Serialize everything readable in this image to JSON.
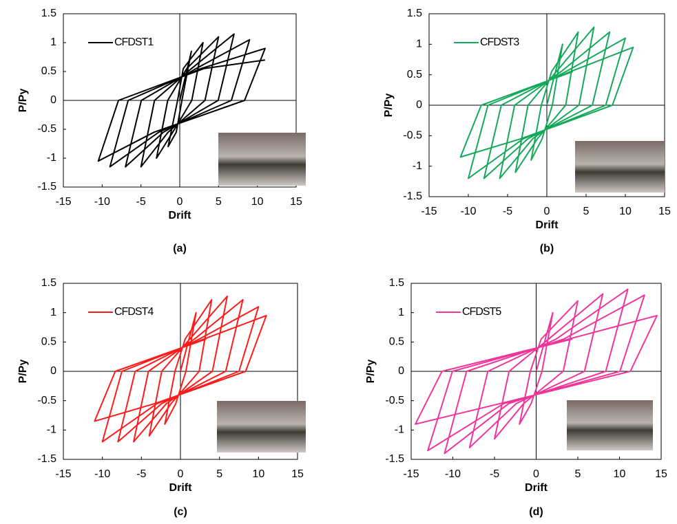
{
  "chart_data": [
    {
      "type": "line",
      "caption": "(a)",
      "xlabel": "Drift",
      "ylabel": "P/Py",
      "xlim": [
        -15,
        15
      ],
      "ylim": [
        -1.5,
        1.5
      ],
      "xticks": [
        -15,
        -10,
        -5,
        0,
        5,
        10,
        15
      ],
      "yticks": [
        -1.5,
        -1,
        -0.5,
        0,
        0.5,
        1,
        1.5
      ],
      "x": [
        0,
        1.5,
        0.28,
        -0.45,
        -1.5,
        -0.28,
        0.45,
        3,
        1.55,
        -0.9,
        -3,
        -1.55,
        0.9,
        5,
        3.25,
        -1.5,
        -5,
        -3.25,
        1.5,
        7,
        4.95,
        -2.1,
        -7,
        -4.95,
        2.1,
        9,
        6.65,
        -2.7,
        -9,
        -6.65,
        2.7,
        11,
        8.35,
        -3.3,
        -10.5,
        -7.9,
        3.1,
        11
      ],
      "series": [
        {
          "name": "CFDST1",
          "color": "#000000",
          "values": [
            0,
            0.85,
            0,
            -0.55,
            -0.8,
            0,
            0.55,
            1.0,
            0,
            -0.55,
            -1.0,
            0,
            0.55,
            1.1,
            0,
            -0.55,
            -1.15,
            0,
            0.55,
            1.15,
            0,
            -0.55,
            -1.15,
            0,
            0.55,
            1.05,
            0,
            -0.55,
            -1.15,
            0,
            0.55,
            0.9,
            0,
            -0.55,
            -1.05,
            0,
            0.55,
            0.7
          ]
        }
      ]
    },
    {
      "type": "line",
      "caption": "(b)",
      "xlabel": "Drift",
      "ylabel": "P/Py",
      "xlim": [
        -15,
        15
      ],
      "ylim": [
        -1.5,
        1.5
      ],
      "xticks": [
        -15,
        -10,
        -5,
        0,
        5,
        10,
        15
      ],
      "yticks": [
        -1.5,
        -1,
        -0.5,
        0,
        0.5,
        1,
        1.5
      ],
      "x": [
        0,
        2,
        0.7,
        -0.6,
        -2,
        -0.7,
        0.6,
        4,
        2.4,
        -1.2,
        -4,
        -2.4,
        1.2,
        6,
        4.1,
        -1.8,
        -6,
        -4.1,
        1.8,
        8,
        5.8,
        -2.4,
        -8,
        -5.8,
        2.4,
        10,
        7.5,
        -3,
        -10,
        -7.5,
        3,
        11,
        8.35,
        -3.3,
        -11,
        -8.35,
        3.3
      ],
      "series": [
        {
          "name": "CFDST3",
          "color": "#14a85a",
          "values": [
            0,
            1.0,
            0,
            -0.55,
            -0.9,
            0,
            0.55,
            1.2,
            0,
            -0.55,
            -1.1,
            0,
            0.55,
            1.28,
            0,
            -0.55,
            -1.2,
            0,
            0.55,
            1.2,
            0,
            -0.55,
            -1.2,
            0,
            0.55,
            1.1,
            0,
            -0.55,
            -1.2,
            0,
            0.55,
            0.95,
            0,
            -0.55,
            -0.85,
            0,
            0.55
          ]
        }
      ]
    },
    {
      "type": "line",
      "caption": "(c)",
      "xlabel": "Drift",
      "ylabel": "P/Py",
      "xlim": [
        -15,
        15
      ],
      "ylim": [
        -1.5,
        1.5
      ],
      "xticks": [
        -15,
        -10,
        -5,
        0,
        5,
        10,
        15
      ],
      "yticks": [
        -1.5,
        -1,
        -0.5,
        0,
        0.5,
        1,
        1.5
      ],
      "x": [
        0,
        2,
        0.7,
        -0.6,
        -2,
        -0.7,
        0.6,
        4,
        2.4,
        -1.2,
        -4,
        -2.4,
        1.2,
        6,
        4.1,
        -1.8,
        -6,
        -4.1,
        1.8,
        8,
        5.8,
        -2.4,
        -8,
        -5.8,
        2.4,
        10,
        7.5,
        -3,
        -10,
        -7.5,
        3,
        11,
        8.35,
        -3.3,
        -11,
        -8.35,
        3.3
      ],
      "series": [
        {
          "name": "CFDST4",
          "color": "#ff1a1a",
          "values": [
            0,
            1.0,
            0,
            -0.55,
            -0.9,
            0,
            0.55,
            1.22,
            0,
            -0.55,
            -1.1,
            0,
            0.55,
            1.28,
            0,
            -0.55,
            -1.2,
            0,
            0.55,
            1.22,
            0,
            -0.55,
            -1.2,
            0,
            0.55,
            1.1,
            0,
            -0.55,
            -1.2,
            0,
            0.55,
            0.95,
            0,
            -0.55,
            -0.85,
            0,
            0.55
          ]
        }
      ]
    },
    {
      "type": "line",
      "caption": "(d)",
      "xlabel": "Drift",
      "ylabel": "P/Py",
      "xlim": [
        -15,
        15
      ],
      "ylim": [
        -1.5,
        1.5
      ],
      "xticks": [
        -15,
        -10,
        -5,
        0,
        5,
        10,
        15
      ],
      "yticks": [
        -1.5,
        -1,
        -0.5,
        0,
        0.5,
        1,
        1.5
      ],
      "x": [
        0,
        2,
        0.7,
        -0.6,
        -2,
        -0.7,
        0.6,
        5,
        3.25,
        -1.5,
        -5,
        -3.25,
        1.5,
        8,
        5.8,
        -2.4,
        -8,
        -5.8,
        2.4,
        11,
        8.35,
        -3.3,
        -11,
        -8.35,
        3.3,
        13,
        10.05,
        -3.9,
        -13,
        -10.05,
        3.9,
        14.5,
        11.3,
        -4.35,
        -14.5,
        -11.3,
        4.35
      ],
      "series": [
        {
          "name": "CFDST5",
          "color": "#f0359a",
          "values": [
            0,
            1.0,
            0,
            -0.55,
            -0.9,
            0,
            0.55,
            1.2,
            0,
            -0.55,
            -1.15,
            0,
            0.55,
            1.32,
            0,
            -0.55,
            -1.3,
            0,
            0.55,
            1.4,
            0,
            -0.55,
            -1.4,
            0,
            0.55,
            1.3,
            0,
            -0.55,
            -1.35,
            0,
            0.55,
            0.95,
            0,
            -0.55,
            -0.9,
            0,
            0.55
          ]
        }
      ]
    }
  ]
}
